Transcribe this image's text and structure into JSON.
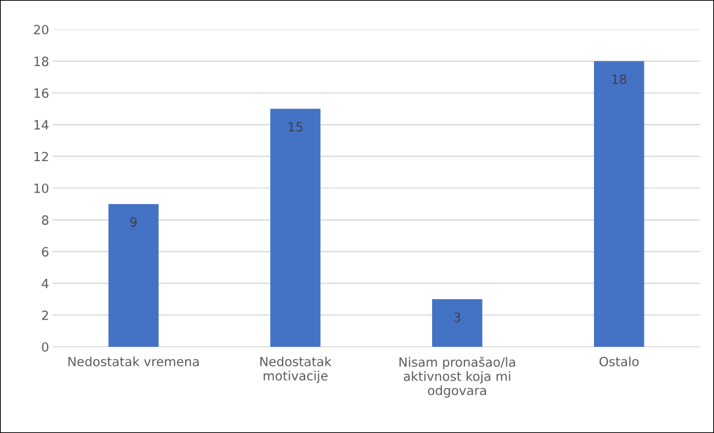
{
  "chart_data": {
    "type": "bar",
    "categories": [
      "Nedostatak vremena",
      "Nedostatak\nmotivacije",
      "Nisam pronašao/la\naktivnost koja mi\nodgovara",
      "Ostalo"
    ],
    "values": [
      9,
      15,
      3,
      18
    ],
    "color": "#4472c4",
    "ylim": [
      0,
      20
    ],
    "yticks": [
      0,
      2,
      4,
      6,
      8,
      10,
      12,
      14,
      16,
      18,
      20
    ],
    "grid": "y",
    "data_labels": true
  }
}
